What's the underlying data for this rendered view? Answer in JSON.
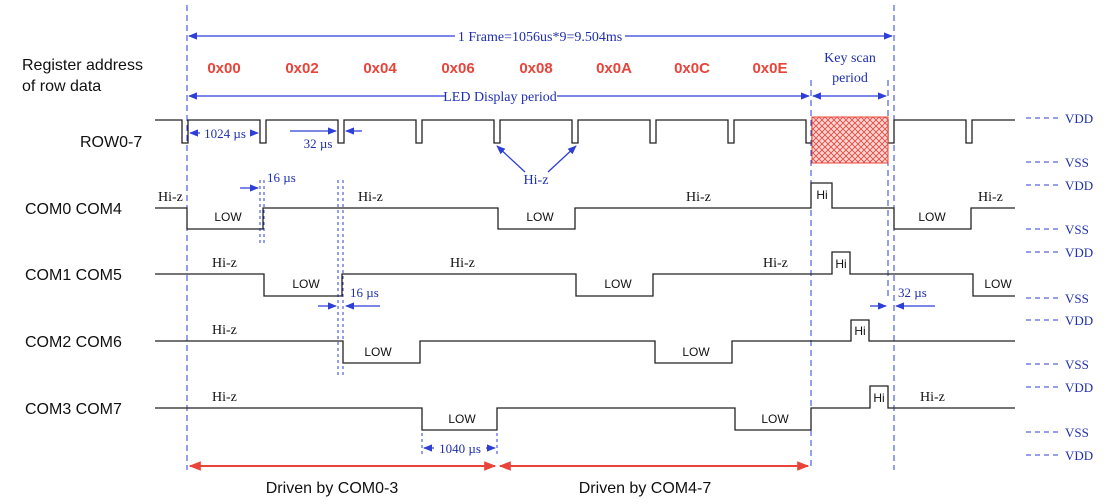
{
  "left_labels": {
    "register_title_line1": "Register address",
    "register_title_line2": "of row data",
    "row": "ROW0-7",
    "com0": "COM0 COM4",
    "com1": "COM1 COM5",
    "com2": "COM2 COM6",
    "com3": "COM3 COM7"
  },
  "frame_label": "1 Frame=1056us*9=9.504ms",
  "led_period_label": "LED Display period",
  "key_scan_line1": "Key scan",
  "key_scan_line2": "period",
  "addresses": [
    "0x00",
    "0x02",
    "0x04",
    "0x06",
    "0x08",
    "0x0A",
    "0x0C",
    "0x0E"
  ],
  "timing": {
    "t1024": "1024 µs",
    "t32_row": "32 µs",
    "t16_a": "16 µs",
    "t16_b": "16 µs",
    "t32_b": "32 µs",
    "t1040": "1040 µs"
  },
  "state_labels": {
    "hiz": "Hi-z",
    "low": "LOW",
    "hi": "Hi"
  },
  "rails": {
    "vdd": "VDD",
    "vss": "VSS"
  },
  "driven_by": {
    "left": "Driven by COM0-3",
    "right": "Driven by COM4-7"
  },
  "colors": {
    "blue": "#2e3fd8",
    "red": "#e8443a",
    "hatch": "#e8443a"
  }
}
